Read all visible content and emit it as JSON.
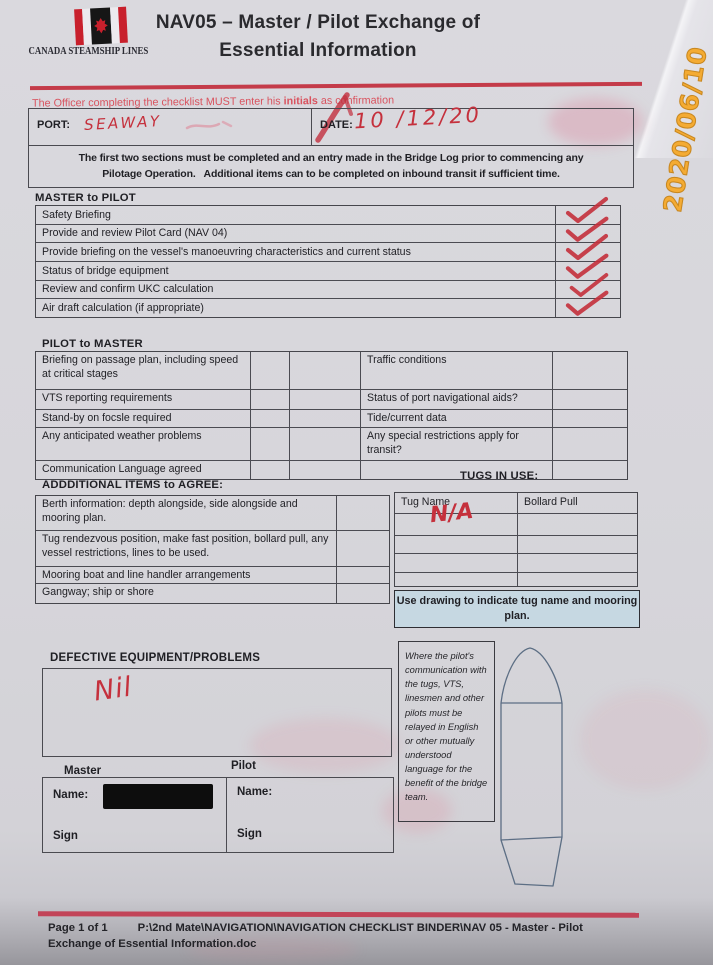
{
  "stamp": {
    "date": "2020/06/10",
    "color": "#f4ab33"
  },
  "header": {
    "company": "CANADA STEAMSHIP LINES",
    "title_line1": "NAV05 – Master / Pilot Exchange of",
    "title_line2": "Essential Information"
  },
  "notice": {
    "pre": "The Officer completing the checklist MUST enter his ",
    "emphasis": "initials",
    "post": " as confirmation"
  },
  "port_date": {
    "port_label": "PORT:",
    "port_value": "Seaway",
    "date_label": "DATE:",
    "date_value": "10 /12/20",
    "instructions": "The first two sections must be completed and an entry made in the Bridge Log prior to commencing any\nPilotage Operation.   Additional items can to be completed on inbound transit if sufficient time."
  },
  "master_to_pilot": {
    "heading": "MASTER to PILOT",
    "items": [
      {
        "label": "Safety Briefing",
        "checked": true
      },
      {
        "label": "Provide and review Pilot Card (NAV 04)",
        "checked": true
      },
      {
        "label": "Provide briefing on the vessel's manoeuvring characteristics and current status",
        "checked": true
      },
      {
        "label": "Status of bridge equipment",
        "checked": true
      },
      {
        "label": "Review and confirm UKC calculation",
        "checked": true
      },
      {
        "label": "Air draft calculation (if appropriate)",
        "checked": true
      }
    ]
  },
  "pilot_to_master": {
    "heading": "PILOT to MASTER",
    "left_items": [
      "Briefing on passage plan, including speed at critical stages",
      "VTS reporting requirements",
      "Stand-by on focsle required",
      "Any anticipated weather problems",
      "Communication Language agreed"
    ],
    "right_items": [
      "Traffic conditions",
      "Status of port navigational aids?",
      "Tide/current data",
      "Any special restrictions apply for transit?",
      ""
    ]
  },
  "additional": {
    "heading": "ADDDITIONAL ITEMS to AGREE:",
    "items": [
      "Berth information: depth alongside, side alongside and mooring plan.",
      "Tug rendezvous position, make fast position, bollard pull, any vessel restrictions, lines to be used.",
      "Mooring boat and line handler arrangements",
      "Gangway; ship or shore"
    ]
  },
  "tugs": {
    "heading": "TUGS IN USE:",
    "columns": [
      "Tug Name",
      "Bollard Pull"
    ],
    "empty_rows": 4,
    "tug_name_value": "N/A",
    "note": "Use drawing to indicate tug name and mooring plan.",
    "note_bg": "#c6d8e2"
  },
  "defective": {
    "heading": "DEFECTIVE EQUIPMENT/PROBLEMS",
    "value": "Nil"
  },
  "signatures": {
    "master_label": "Master",
    "pilot_label": "Pilot",
    "name_label": "Name:",
    "sign_label": "Sign"
  },
  "pilot_note": "Where the pilot's communication with the tugs, VTS, linesmen and other pilots must be relayed in English or other mutually understood language for the benefit of the bridge team.",
  "footer": {
    "page": "Page 1 of 1",
    "path_line1": "P:\\2nd Mate\\NAVIGATION\\NAVIGATION CHECKLIST BINDER\\NAV 05 - Master - Pilot",
    "path_line2": "Exchange of Essential Information.doc"
  },
  "colors": {
    "ink_red": "#c5303c",
    "accent_red": "#c43b49",
    "footer_rule": "#c24458"
  }
}
